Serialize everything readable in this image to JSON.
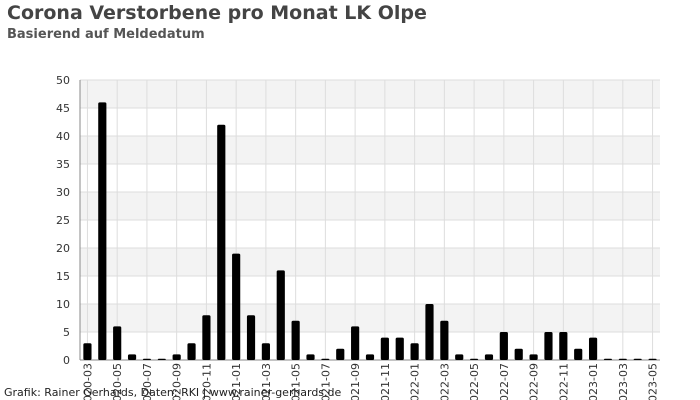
{
  "title": "Corona Verstorbene pro Monat LK Olpe",
  "subtitle": "Basierend auf Meldedatum",
  "footer": "Grafik: Rainer Gerhards, Daten: RKI | www.rainer-gerhards.de",
  "colors": {
    "bar": "#000000",
    "band": "#f3f3f3",
    "grid": "#dddddd",
    "axis": "#888888"
  },
  "chart_data": {
    "type": "bar",
    "title": "Corona Verstorbene pro Monat LK Olpe",
    "subtitle": "Basierend auf Meldedatum",
    "xlabel": "",
    "ylabel": "",
    "ylim": [
      0,
      50
    ],
    "yticks": [
      0,
      5,
      10,
      15,
      20,
      25,
      30,
      35,
      40,
      45,
      50
    ],
    "grid": true,
    "legend": "none",
    "categories": [
      "2020-03",
      "2020-04",
      "2020-05",
      "2020-06",
      "2020-07",
      "2020-08",
      "2020-09",
      "2020-10",
      "2020-11",
      "2020-12",
      "2021-01",
      "2021-02",
      "2021-03",
      "2021-04",
      "2021-05",
      "2021-06",
      "2021-07",
      "2021-08",
      "2021-09",
      "2021-10",
      "2021-11",
      "2021-12",
      "2022-01",
      "2022-02",
      "2022-03",
      "2022-04",
      "2022-05",
      "2022-06",
      "2022-07",
      "2022-08",
      "2022-09",
      "2022-10",
      "2022-11",
      "2022-12",
      "2023-01",
      "2023-02",
      "2023-03",
      "2023-04",
      "2023-05"
    ],
    "values": [
      3,
      46,
      6,
      1,
      0,
      0,
      1,
      3,
      8,
      42,
      19,
      8,
      3,
      16,
      7,
      1,
      0,
      2,
      6,
      1,
      4,
      4,
      3,
      10,
      7,
      1,
      0,
      1,
      5,
      2,
      1,
      5,
      5,
      2,
      4,
      0,
      0,
      0,
      0
    ],
    "tick_labels": [
      "2020-03",
      "2020-05",
      "2020-07",
      "2020-09",
      "2020-11",
      "2021-01",
      "2021-03",
      "2021-05",
      "2021-07",
      "2021-09",
      "2021-11",
      "2022-01",
      "2022-03",
      "2022-05",
      "2022-07",
      "2022-09",
      "2022-11",
      "2023-01",
      "2023-03",
      "2023-05"
    ]
  }
}
